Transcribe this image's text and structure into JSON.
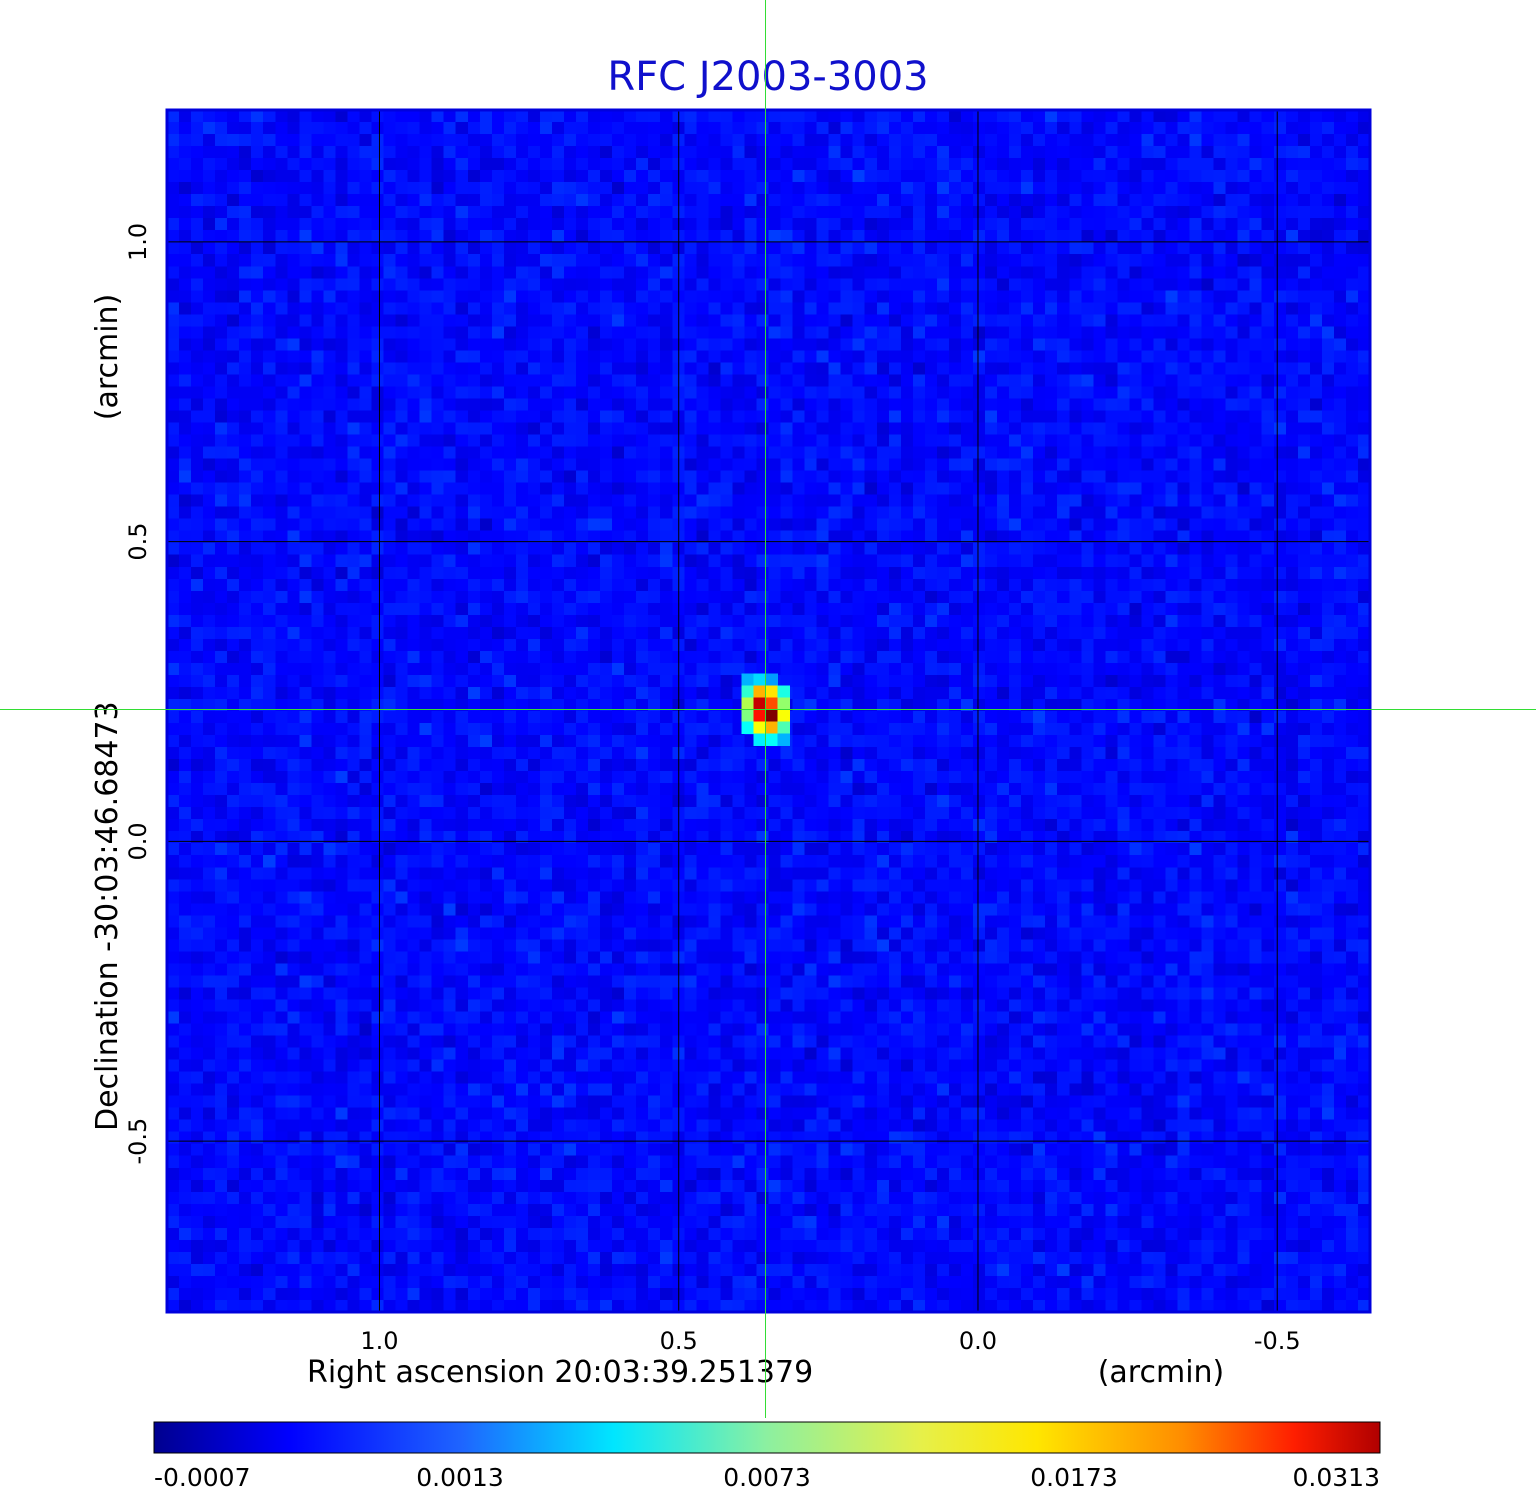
{
  "chart_data": {
    "type": "heatmap",
    "title": "RFC J2003-3003",
    "xlabel": "Right ascension  20:03:39.251379",
    "xunit": "(arcmin)",
    "ylabel": "Declination  -30:03:46.68473",
    "yunit": "(arcmin)",
    "x_ticks": [
      "1.0",
      "0.5",
      "0.0",
      "-0.5"
    ],
    "y_ticks": [
      "1.0",
      "0.5",
      "0.0",
      "-0.5"
    ],
    "x_tick_values": [
      1.0,
      0.5,
      0.0,
      -0.5
    ],
    "y_tick_values": [
      1.0,
      0.5,
      0.0,
      -0.5
    ],
    "xlim": [
      1.355,
      -0.655
    ],
    "ylim": [
      -0.785,
      1.22
    ],
    "x_reversed": true,
    "grid": true,
    "crosshair": {
      "x": 0.355,
      "y": 0.22,
      "color": "#33dd33"
    },
    "source_peak": {
      "x": 0.355,
      "y": 0.22,
      "value": 0.0313
    },
    "colormap": "jet",
    "colorbar_ticks": [
      "-0.0007",
      "0.0013",
      "0.0073",
      "0.0173",
      "0.0313"
    ],
    "colorbar_values": [
      -0.0007,
      0.0013,
      0.0073,
      0.0173,
      0.0313
    ],
    "value_range": [
      -0.0007,
      0.0313
    ],
    "colorbar_placement": "bottom",
    "frame_color": "#0000dd",
    "grid_color": "#000000"
  }
}
